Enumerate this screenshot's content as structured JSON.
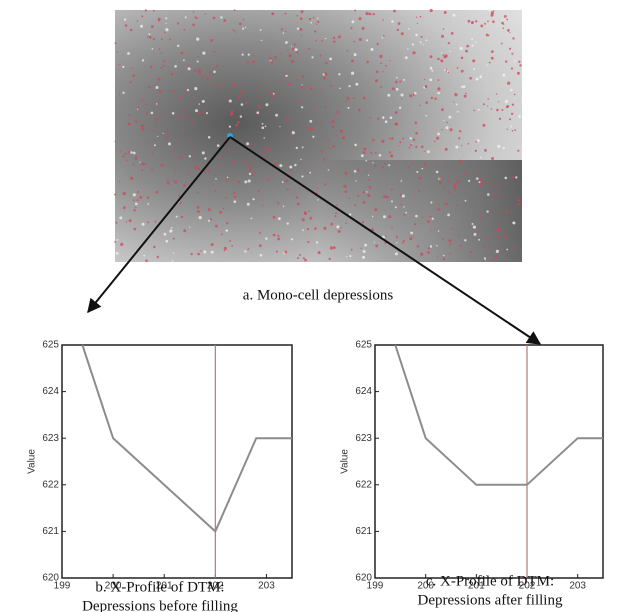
{
  "image": {
    "caption": "a. Mono-cell depressions"
  },
  "chart_data": [
    {
      "type": "line",
      "caption": [
        "b. X-Profile of DTM:",
        "Depressions before filling"
      ],
      "ylabel": "Value",
      "x": [
        199.4,
        200,
        202,
        202.8,
        203.5
      ],
      "series": [
        {
          "color": "#8c8c8c",
          "values": [
            625,
            623,
            621,
            623,
            623
          ]
        }
      ],
      "cursor_x": 202,
      "cursor_color": "#b07a7a",
      "xlim": [
        199,
        203.5
      ],
      "xticks": [
        199,
        200,
        201,
        202,
        203
      ],
      "ylim": [
        620,
        625
      ],
      "yticks": [
        620,
        621,
        622,
        623,
        624,
        625
      ]
    },
    {
      "type": "line",
      "caption": [
        "c. X-Profile of DTM:",
        "Depressions after filling"
      ],
      "ylabel": "Value",
      "x": [
        199.4,
        200,
        201,
        202,
        203,
        203.5
      ],
      "series": [
        {
          "color": "#8c8c8c",
          "values": [
            625,
            623,
            622,
            622,
            623,
            623
          ]
        }
      ],
      "cursor_x": 202,
      "cursor_color": "#b07a7a",
      "xlim": [
        199,
        203.5
      ],
      "xticks": [
        199,
        200,
        201,
        202,
        203
      ],
      "ylim": [
        620,
        625
      ],
      "yticks": [
        620,
        621,
        622,
        623,
        624,
        625
      ]
    }
  ]
}
